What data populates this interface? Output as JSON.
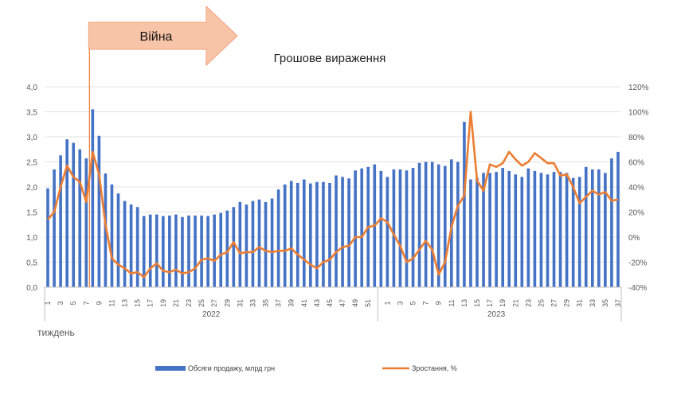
{
  "chart_data": {
    "type": "bar+line",
    "title": "Грошове вираження",
    "xlabel": "тиждень",
    "annotation": "Війна",
    "annotation_week_index": 7,
    "year_groups": [
      {
        "label": "2022",
        "start": 0,
        "end": 52
      },
      {
        "label": "2023",
        "start": 52,
        "end": 89
      }
    ],
    "x_tick_labels": [
      "1",
      "",
      "3",
      "",
      "5",
      "",
      "7",
      "",
      "9",
      "",
      "11",
      "",
      "13",
      "",
      "15",
      "",
      "17",
      "",
      "19",
      "",
      "21",
      "",
      "23",
      "",
      "25",
      "",
      "27",
      "",
      "29",
      "",
      "31",
      "",
      "33",
      "",
      "35",
      "",
      "37",
      "",
      "39",
      "",
      "41",
      "",
      "43",
      "",
      "45",
      "",
      "47",
      "",
      "49",
      "",
      "51",
      "",
      "",
      "1",
      "",
      "3",
      "",
      "5",
      "",
      "7",
      "",
      "9",
      "",
      "11",
      "",
      "13",
      "",
      "15",
      "",
      "17",
      "",
      "19",
      "",
      "21",
      "",
      "23",
      "",
      "25",
      "",
      "27",
      "",
      "29",
      "",
      "31",
      "",
      "33",
      "",
      "35",
      "",
      "37"
    ],
    "y_left": {
      "min": 0,
      "max": 4.0,
      "step": 0.5,
      "ticks": [
        "0,0",
        "0,5",
        "1,0",
        "1,5",
        "2,0",
        "2,5",
        "3,0",
        "3,5",
        "4,0"
      ]
    },
    "y_right": {
      "min": -40,
      "max": 120,
      "step": 20,
      "ticks": [
        "-40%",
        "-20%",
        "0%",
        "20%",
        "40%",
        "60%",
        "80%",
        "100%",
        "120%"
      ]
    },
    "series": [
      {
        "name": "Обсяги продажу, млрд грн",
        "type": "bar",
        "color": "#4472C4",
        "values": [
          1.97,
          2.35,
          2.63,
          2.95,
          2.88,
          2.75,
          2.57,
          3.55,
          3.02,
          2.27,
          2.05,
          1.87,
          1.72,
          1.65,
          1.6,
          1.42,
          1.45,
          1.45,
          1.42,
          1.43,
          1.45,
          1.4,
          1.43,
          1.43,
          1.43,
          1.42,
          1.45,
          1.48,
          1.53,
          1.6,
          1.7,
          1.65,
          1.72,
          1.75,
          1.7,
          1.77,
          1.95,
          2.05,
          2.12,
          2.08,
          2.15,
          2.07,
          2.1,
          2.1,
          2.08,
          2.23,
          2.2,
          2.17,
          2.33,
          2.37,
          2.4,
          2.45,
          2.32,
          2.2,
          2.35,
          2.35,
          2.33,
          2.38,
          2.48,
          2.5,
          2.5,
          2.45,
          2.42,
          2.55,
          2.5,
          3.3,
          2.15,
          2.18,
          2.28,
          2.28,
          2.3,
          2.38,
          2.32,
          2.25,
          2.2,
          2.37,
          2.32,
          2.28,
          2.25,
          2.3,
          2.3,
          2.28,
          2.18,
          2.2,
          2.4,
          2.35,
          2.35,
          2.28,
          2.57,
          2.7
        ]
      },
      {
        "name": "Зростання, %",
        "type": "line",
        "color": "#ED7D31",
        "values": [
          14,
          20,
          40,
          57,
          48,
          44,
          28,
          68,
          50,
          10,
          -17,
          -22,
          -25,
          -29,
          -28,
          -32,
          -25,
          -21,
          -27,
          -28,
          -26,
          -29,
          -28,
          -25,
          -18,
          -17,
          -19,
          -14,
          -12,
          -4,
          -13,
          -12,
          -12,
          -8,
          -11,
          -12,
          -11,
          -11,
          -9,
          -14,
          -18,
          -22,
          -25,
          -20,
          -18,
          -12,
          -8,
          -7,
          0,
          0,
          8,
          9,
          15,
          12,
          2,
          -7,
          -20,
          -17,
          -10,
          -3,
          -10,
          -30,
          -20,
          8,
          25,
          33,
          100,
          45,
          37,
          58,
          56,
          59,
          68,
          62,
          57,
          60,
          67,
          63,
          59,
          59,
          49,
          50,
          40,
          27,
          32,
          37,
          34,
          36,
          29,
          30
        ]
      }
    ],
    "legend_position": "bottom"
  }
}
